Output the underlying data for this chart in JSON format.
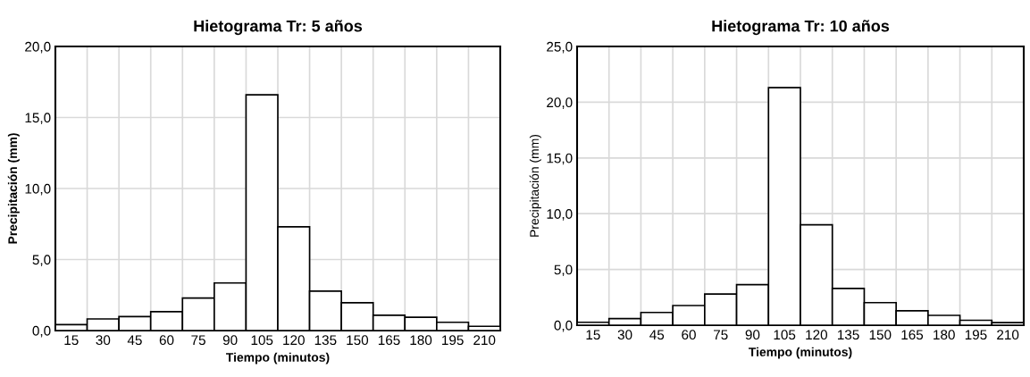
{
  "chart_data": [
    {
      "type": "bar",
      "title": "Hietograma Tr: 5 años",
      "xlabel": "Tiempo (minutos)",
      "ylabel": "Precipitación (mm)",
      "categories": [
        "15",
        "30",
        "45",
        "60",
        "75",
        "90",
        "105",
        "120",
        "135",
        "150",
        "165",
        "180",
        "195",
        "210"
      ],
      "values": [
        0.42,
        0.82,
        0.98,
        1.33,
        2.29,
        3.35,
        16.6,
        7.3,
        2.78,
        1.96,
        1.08,
        0.94,
        0.58,
        0.3
      ],
      "color": "#ffffff",
      "ylim": [
        0,
        20
      ],
      "yticks": [
        {
          "value": 0,
          "label": "0,0"
        },
        {
          "value": 5,
          "label": "5,0"
        },
        {
          "value": 10,
          "label": "10,0"
        },
        {
          "value": 15,
          "label": "15,0"
        },
        {
          "value": 20,
          "label": "20,0"
        }
      ],
      "grid": true
    },
    {
      "type": "bar",
      "title": "Hietograma Tr: 10 años",
      "xlabel": "Tiempo (minutos)",
      "ylabel": "Precipitación (mm)",
      "categories": [
        "15",
        "30",
        "45",
        "60",
        "75",
        "90",
        "105",
        "120",
        "135",
        "150",
        "165",
        "180",
        "195",
        "210"
      ],
      "values": [
        0.26,
        0.59,
        1.14,
        1.76,
        2.79,
        3.64,
        21.3,
        9.0,
        3.29,
        2.02,
        1.29,
        0.88,
        0.44,
        0.23
      ],
      "color": "#ffffff",
      "ylim": [
        0,
        25
      ],
      "yticks": [
        {
          "value": 0,
          "label": "0,0"
        },
        {
          "value": 5,
          "label": "5,0"
        },
        {
          "value": 10,
          "label": "10,0"
        },
        {
          "value": 15,
          "label": "15,0"
        },
        {
          "value": 20,
          "label": "20,0"
        },
        {
          "value": 25,
          "label": "25,0"
        }
      ],
      "grid": true
    }
  ]
}
